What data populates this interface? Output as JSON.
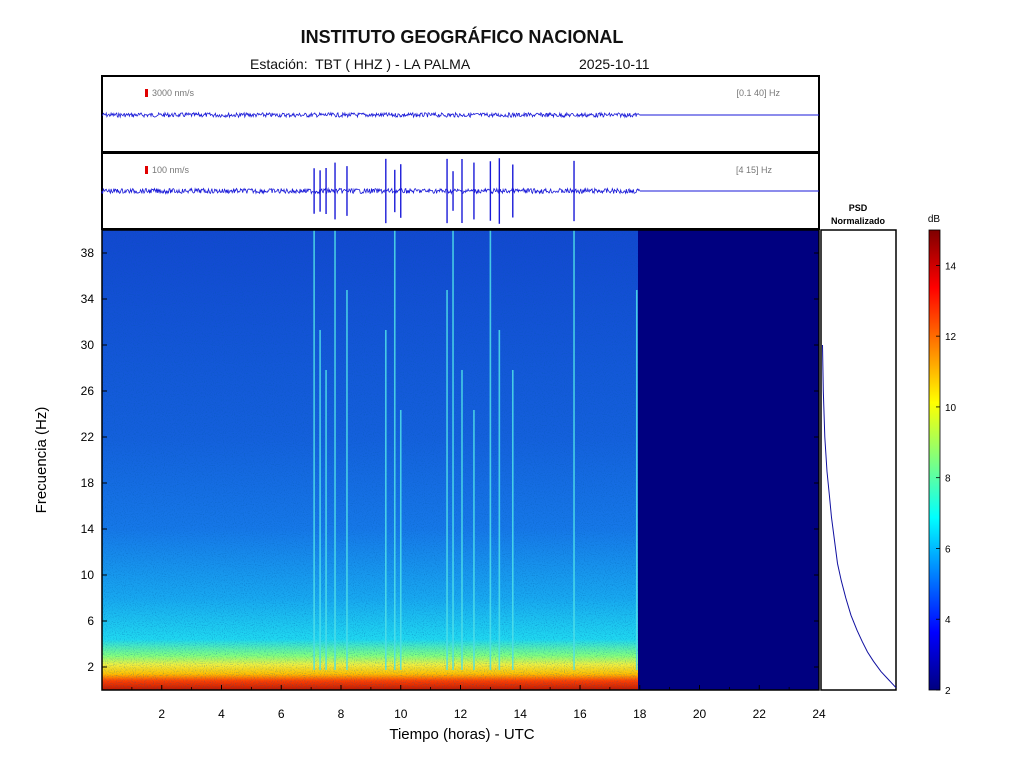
{
  "header": {
    "title": "INSTITUTO GEOGRÁFICO NACIONAL",
    "station": "Estación:  TBT ( HHZ ) - LA PALMA",
    "date": "2025-10-11"
  },
  "chart_data": [
    {
      "type": "line",
      "panel": "seismogram-broadband",
      "scale_label": "3000 nm/s",
      "filter_label": "[0.1 40] Hz",
      "x_range": [
        0,
        24
      ],
      "data_until_hour": 18
    },
    {
      "type": "line",
      "panel": "seismogram-filtered",
      "scale_label": "100 nm/s",
      "filter_label": "[4 15] Hz",
      "x_range": [
        0,
        24
      ],
      "data_until_hour": 18,
      "events_hours": [
        7.1,
        7.3,
        7.5,
        7.8,
        8.2,
        9.5,
        9.8,
        10.0,
        11.55,
        11.75,
        12.05,
        12.45,
        13.0,
        13.3,
        13.75,
        15.8
      ]
    },
    {
      "type": "heatmap",
      "panel": "spectrogram",
      "xlabel": "Tiempo (horas) - UTC",
      "ylabel": "Frecuencia  (Hz)",
      "x_range": [
        0,
        24
      ],
      "y_range": [
        0,
        40
      ],
      "x_ticks": [
        2,
        4,
        6,
        8,
        10,
        12,
        14,
        16,
        18,
        20,
        22,
        24
      ],
      "y_ticks": [
        2,
        6,
        10,
        14,
        18,
        22,
        26,
        30,
        34,
        38
      ],
      "data_until_hour": 18,
      "events_hours": [
        7.1,
        7.3,
        7.5,
        7.8,
        8.2,
        9.5,
        9.8,
        10.0,
        11.55,
        11.75,
        12.05,
        12.45,
        13.0,
        13.3,
        13.75,
        15.8,
        17.9
      ],
      "colormap": "jet"
    },
    {
      "type": "line",
      "panel": "psd",
      "title": "PSD\nNormalizado",
      "y_range": [
        0,
        40
      ],
      "x": [
        0.02,
        0.03,
        0.05,
        0.08,
        0.11,
        0.14,
        0.18,
        0.22,
        0.27,
        0.33,
        0.4,
        0.48,
        0.55,
        0.62,
        0.7,
        0.8,
        0.9,
        1.0
      ],
      "y": [
        30,
        26,
        22,
        19,
        17,
        15,
        13,
        11,
        9.5,
        8,
        6.5,
        5.2,
        4.2,
        3.3,
        2.5,
        1.6,
        0.9,
        0.2
      ]
    }
  ],
  "colorbar": {
    "label": "dB",
    "range": [
      2,
      15
    ],
    "ticks": [
      2,
      4,
      6,
      8,
      10,
      12,
      14
    ],
    "colors": [
      "#00007f",
      "#0000ff",
      "#007fff",
      "#00ffff",
      "#7fff7f",
      "#ffff00",
      "#ff7f00",
      "#ff0000",
      "#7f0000"
    ]
  }
}
